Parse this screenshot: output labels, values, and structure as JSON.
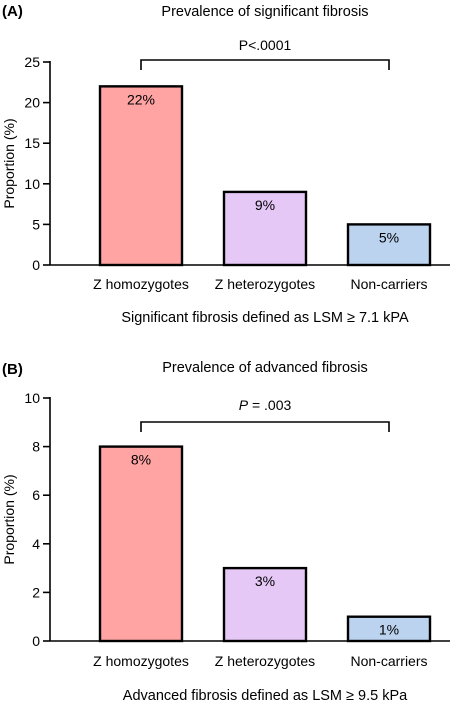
{
  "chart_data": [
    {
      "type": "bar",
      "panel_label": "(A)",
      "title": "Prevalence of significant fibrosis",
      "ylabel": "Proportion (%)",
      "xlabel": "",
      "ylim": [
        0,
        25
      ],
      "yticks": [
        0,
        5,
        10,
        15,
        20,
        25
      ],
      "grid": false,
      "categories": [
        "Z homozygotes",
        "Z heterozygotes",
        "Non-carriers"
      ],
      "values": [
        22,
        9,
        5
      ],
      "data_labels": [
        "22%",
        "9%",
        "5%"
      ],
      "bar_colors": [
        "#ffa3a3",
        "#e6c8f7",
        "#bcd3f0"
      ],
      "comparison": {
        "label_prefix": "P",
        "label_value": "<.0001",
        "italic_p": false,
        "from": "Z homozygotes",
        "to": "Non-carriers"
      },
      "footnote": "Significant fibrosis defined as LSM ≥ 7.1 kPA"
    },
    {
      "type": "bar",
      "panel_label": "(B)",
      "title": "Prevalence of advanced fibrosis",
      "ylabel": "Proportion (%)",
      "xlabel": "",
      "ylim": [
        0,
        10
      ],
      "yticks": [
        0,
        2,
        4,
        6,
        8,
        10
      ],
      "grid": false,
      "categories": [
        "Z homozygotes",
        "Z heterozygotes",
        "Non-carriers"
      ],
      "values": [
        8,
        3,
        1
      ],
      "data_labels": [
        "8%",
        "3%",
        "1%"
      ],
      "bar_colors": [
        "#ffa3a3",
        "#e6c8f7",
        "#bcd3f0"
      ],
      "comparison": {
        "label_prefix": "P",
        "label_value": " = .003",
        "italic_p": true,
        "from": "Z homozygotes",
        "to": "Non-carriers"
      },
      "footnote": "Advanced fibrosis defined as LSM ≥ 9.5 kPa"
    }
  ]
}
